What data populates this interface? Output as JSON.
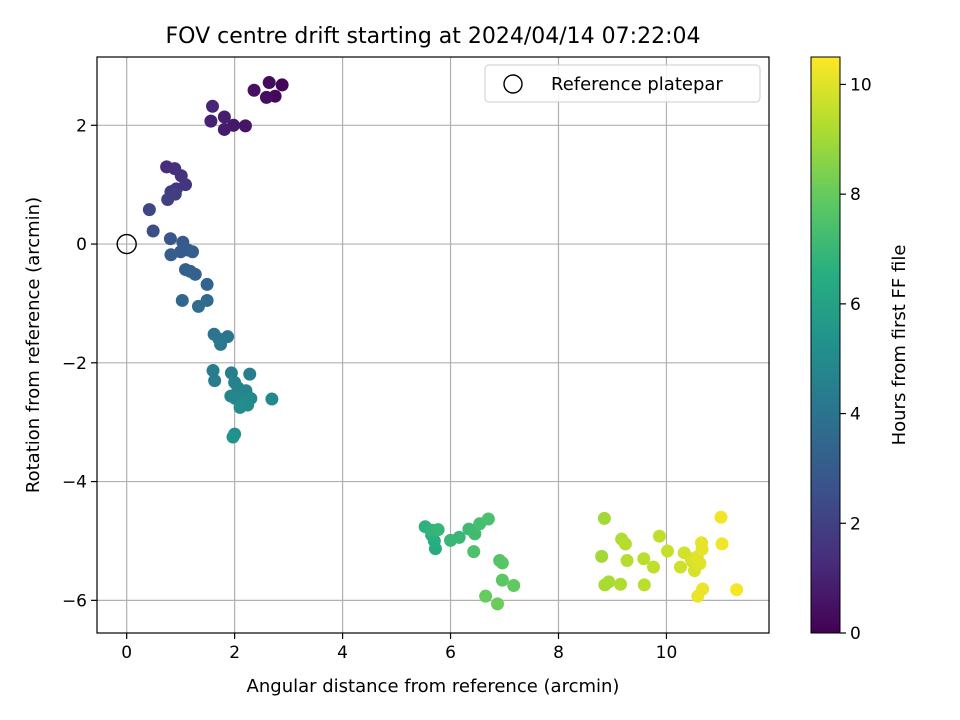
{
  "chart_data": {
    "type": "scatter",
    "title": "FOV centre drift starting at 2024/04/14 07:22:04",
    "xlabel": "Angular distance from reference (arcmin)",
    "ylabel": "Rotation from reference (arcmin)",
    "xlim": [
      -0.55,
      11.9
    ],
    "ylim": [
      -6.55,
      3.15
    ],
    "xticks": [
      0,
      2,
      4,
      6,
      8,
      10
    ],
    "yticks": [
      -6,
      -4,
      -2,
      0,
      2
    ],
    "grid": true,
    "legend": {
      "position": "top-right",
      "entries": [
        "Reference platepar"
      ]
    },
    "reference_point": {
      "x": 0,
      "y": 0
    },
    "colorbar": {
      "label": "Hours from first FF file",
      "ticks": [
        0,
        2,
        4,
        6,
        8,
        10
      ],
      "range": [
        0,
        10.5
      ],
      "colormap": "viridis"
    },
    "points": [
      {
        "x": 2.88,
        "y": 2.68,
        "h": 0.1
      },
      {
        "x": 2.75,
        "y": 2.49,
        "h": 0.2
      },
      {
        "x": 2.64,
        "y": 2.72,
        "h": 0.3
      },
      {
        "x": 2.59,
        "y": 2.47,
        "h": 0.4
      },
      {
        "x": 2.36,
        "y": 2.59,
        "h": 0.5
      },
      {
        "x": 2.2,
        "y": 1.99,
        "h": 0.6
      },
      {
        "x": 1.98,
        "y": 2.0,
        "h": 0.7
      },
      {
        "x": 1.81,
        "y": 1.93,
        "h": 0.8
      },
      {
        "x": 1.81,
        "y": 2.14,
        "h": 0.9
      },
      {
        "x": 1.56,
        "y": 2.07,
        "h": 1.0
      },
      {
        "x": 1.59,
        "y": 2.32,
        "h": 1.1
      },
      {
        "x": 0.74,
        "y": 1.3,
        "h": 1.3
      },
      {
        "x": 0.89,
        "y": 1.27,
        "h": 1.4
      },
      {
        "x": 1.01,
        "y": 1.15,
        "h": 1.5
      },
      {
        "x": 1.09,
        "y": 1.0,
        "h": 1.6
      },
      {
        "x": 0.92,
        "y": 0.93,
        "h": 1.7
      },
      {
        "x": 0.82,
        "y": 0.88,
        "h": 1.8
      },
      {
        "x": 0.9,
        "y": 0.84,
        "h": 1.9
      },
      {
        "x": 0.76,
        "y": 0.75,
        "h": 2.0
      },
      {
        "x": 0.42,
        "y": 0.58,
        "h": 2.2
      },
      {
        "x": 0.49,
        "y": 0.22,
        "h": 2.5
      },
      {
        "x": 0.81,
        "y": 0.09,
        "h": 2.8
      },
      {
        "x": 1.04,
        "y": 0.03,
        "h": 2.9
      },
      {
        "x": 1.13,
        "y": -0.1,
        "h": 3.0
      },
      {
        "x": 1.0,
        "y": -0.13,
        "h": 3.0
      },
      {
        "x": 1.22,
        "y": -0.13,
        "h": 3.1
      },
      {
        "x": 0.82,
        "y": -0.18,
        "h": 3.1
      },
      {
        "x": 1.09,
        "y": -0.43,
        "h": 3.2
      },
      {
        "x": 1.18,
        "y": -0.46,
        "h": 3.3
      },
      {
        "x": 1.27,
        "y": -0.51,
        "h": 3.3
      },
      {
        "x": 1.49,
        "y": -0.68,
        "h": 3.4
      },
      {
        "x": 1.03,
        "y": -0.95,
        "h": 3.5
      },
      {
        "x": 1.49,
        "y": -0.95,
        "h": 3.6
      },
      {
        "x": 1.33,
        "y": -1.05,
        "h": 3.7
      },
      {
        "x": 1.62,
        "y": -1.52,
        "h": 4.0
      },
      {
        "x": 1.71,
        "y": -1.6,
        "h": 4.1
      },
      {
        "x": 1.87,
        "y": -1.56,
        "h": 4.1
      },
      {
        "x": 1.74,
        "y": -1.69,
        "h": 4.2
      },
      {
        "x": 1.6,
        "y": -2.13,
        "h": 4.4
      },
      {
        "x": 1.63,
        "y": -2.3,
        "h": 4.4
      },
      {
        "x": 1.94,
        "y": -2.17,
        "h": 4.5
      },
      {
        "x": 2.28,
        "y": -2.19,
        "h": 4.5
      },
      {
        "x": 2.0,
        "y": -2.33,
        "h": 4.6
      },
      {
        "x": 2.06,
        "y": -2.42,
        "h": 4.6
      },
      {
        "x": 2.21,
        "y": -2.47,
        "h": 4.7
      },
      {
        "x": 1.93,
        "y": -2.56,
        "h": 4.7
      },
      {
        "x": 2.01,
        "y": -2.6,
        "h": 4.8
      },
      {
        "x": 2.12,
        "y": -2.6,
        "h": 4.8
      },
      {
        "x": 2.3,
        "y": -2.6,
        "h": 4.9
      },
      {
        "x": 2.69,
        "y": -2.61,
        "h": 4.9
      },
      {
        "x": 2.16,
        "y": -2.68,
        "h": 5.0
      },
      {
        "x": 2.24,
        "y": -2.71,
        "h": 5.0
      },
      {
        "x": 2.1,
        "y": -2.75,
        "h": 5.1
      },
      {
        "x": 2.0,
        "y": -3.2,
        "h": 5.2
      },
      {
        "x": 1.97,
        "y": -3.25,
        "h": 5.3
      },
      {
        "x": 5.72,
        "y": -5.13,
        "h": 6.4
      },
      {
        "x": 5.7,
        "y": -5.0,
        "h": 6.5
      },
      {
        "x": 5.65,
        "y": -4.9,
        "h": 6.6
      },
      {
        "x": 5.53,
        "y": -4.76,
        "h": 6.7
      },
      {
        "x": 5.66,
        "y": -4.82,
        "h": 6.8
      },
      {
        "x": 5.77,
        "y": -4.81,
        "h": 6.9
      },
      {
        "x": 6.0,
        "y": -4.99,
        "h": 7.0
      },
      {
        "x": 6.16,
        "y": -4.94,
        "h": 7.0
      },
      {
        "x": 6.34,
        "y": -4.8,
        "h": 7.1
      },
      {
        "x": 6.45,
        "y": -4.88,
        "h": 7.2
      },
      {
        "x": 6.54,
        "y": -4.71,
        "h": 7.3
      },
      {
        "x": 6.7,
        "y": -4.63,
        "h": 7.4
      },
      {
        "x": 6.43,
        "y": -5.18,
        "h": 7.5
      },
      {
        "x": 6.91,
        "y": -5.33,
        "h": 7.6
      },
      {
        "x": 6.96,
        "y": -5.37,
        "h": 7.7
      },
      {
        "x": 6.96,
        "y": -5.66,
        "h": 7.8
      },
      {
        "x": 7.17,
        "y": -5.75,
        "h": 7.9
      },
      {
        "x": 6.65,
        "y": -5.93,
        "h": 8.0
      },
      {
        "x": 6.87,
        "y": -6.06,
        "h": 8.1
      },
      {
        "x": 8.85,
        "y": -4.62,
        "h": 9.0
      },
      {
        "x": 8.8,
        "y": -5.26,
        "h": 9.0
      },
      {
        "x": 8.86,
        "y": -5.74,
        "h": 9.1
      },
      {
        "x": 8.93,
        "y": -5.69,
        "h": 9.1
      },
      {
        "x": 9.15,
        "y": -5.73,
        "h": 9.2
      },
      {
        "x": 9.17,
        "y": -4.97,
        "h": 9.2
      },
      {
        "x": 9.24,
        "y": -5.05,
        "h": 9.3
      },
      {
        "x": 9.27,
        "y": -5.33,
        "h": 9.3
      },
      {
        "x": 9.58,
        "y": -5.3,
        "h": 9.4
      },
      {
        "x": 9.59,
        "y": -5.74,
        "h": 9.4
      },
      {
        "x": 9.76,
        "y": -5.44,
        "h": 9.5
      },
      {
        "x": 9.87,
        "y": -4.92,
        "h": 9.5
      },
      {
        "x": 10.02,
        "y": -5.17,
        "h": 9.6
      },
      {
        "x": 10.26,
        "y": -5.44,
        "h": 9.7
      },
      {
        "x": 10.33,
        "y": -5.2,
        "h": 9.8
      },
      {
        "x": 10.46,
        "y": -5.3,
        "h": 9.8
      },
      {
        "x": 10.48,
        "y": -5.35,
        "h": 9.9
      },
      {
        "x": 10.52,
        "y": -5.5,
        "h": 9.9
      },
      {
        "x": 10.57,
        "y": -5.27,
        "h": 10.0
      },
      {
        "x": 10.62,
        "y": -5.38,
        "h": 10.0
      },
      {
        "x": 10.65,
        "y": -5.03,
        "h": 10.1
      },
      {
        "x": 10.66,
        "y": -5.14,
        "h": 10.1
      },
      {
        "x": 10.58,
        "y": -5.93,
        "h": 10.2
      },
      {
        "x": 10.67,
        "y": -5.81,
        "h": 10.2
      },
      {
        "x": 11.01,
        "y": -4.6,
        "h": 10.3
      },
      {
        "x": 11.03,
        "y": -5.05,
        "h": 10.3
      },
      {
        "x": 11.3,
        "y": -5.82,
        "h": 10.4
      }
    ]
  }
}
